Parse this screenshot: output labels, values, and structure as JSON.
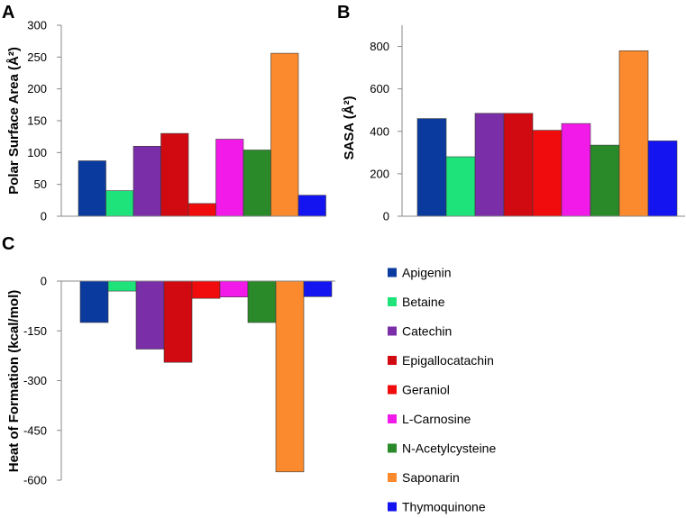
{
  "legend": [
    "Apigenin",
    "Betaine",
    "Catechin",
    "Epigallocatachin",
    "Geraniol",
    "L-Carnosine",
    "N-Acetylcysteine",
    "Saponarin",
    "Thymoquinone"
  ],
  "colors": [
    "#0a3a9e",
    "#1de37a",
    "#7a2ea8",
    "#d10a12",
    "#f00c0c",
    "#f21ae8",
    "#2a8a2a",
    "#fb8a2e",
    "#1414f0"
  ],
  "chart_data": [
    {
      "panel": "A",
      "type": "bar",
      "ylabel": "Polar Surface Area (Å²)",
      "ylim": [
        0,
        300
      ],
      "yticks": [
        0,
        50,
        100,
        150,
        200,
        250,
        300
      ],
      "ytick_labels": [
        "0",
        "50",
        "100",
        "150",
        "200",
        "250",
        "300"
      ],
      "categories": [
        "Apigenin",
        "Betaine",
        "Catechin",
        "Epigallocatachin",
        "Geraniol",
        "L-Carnosine",
        "N-Acetylcysteine",
        "Saponarin",
        "Thymoquinone"
      ],
      "values": [
        87,
        40,
        110,
        130,
        20,
        121,
        104,
        256,
        33
      ]
    },
    {
      "panel": "B",
      "type": "bar",
      "ylabel": "SASA (Å²)",
      "ylim": [
        0,
        900
      ],
      "yticks": [
        0,
        200,
        400,
        600,
        800
      ],
      "ytick_labels": [
        "0",
        "200",
        "400",
        "600",
        "800"
      ],
      "categories": [
        "Apigenin",
        "Betaine",
        "Catechin",
        "Epigallocatachin",
        "Geraniol",
        "L-Carnosine",
        "N-Acetylcysteine",
        "Saponarin",
        "Thymoquinone"
      ],
      "values": [
        460,
        280,
        485,
        485,
        405,
        437,
        335,
        780,
        355
      ]
    },
    {
      "panel": "C",
      "type": "bar",
      "ylabel": "Heat of Formation (kcal/mol)",
      "ylim": [
        -600,
        0
      ],
      "yticks": [
        0,
        -150,
        -300,
        -450,
        -600
      ],
      "ytick_labels": [
        "0",
        "-150",
        "-300",
        "-450",
        "-600"
      ],
      "categories": [
        "Apigenin",
        "Betaine",
        "Catechin",
        "Epigallocatachin",
        "Geraniol",
        "L-Carnosine",
        "N-Acetylcysteine",
        "Saponarin",
        "Thymoquinone"
      ],
      "values": [
        -125,
        -30,
        -205,
        -245,
        -52,
        -48,
        -125,
        -575,
        -47
      ]
    }
  ]
}
